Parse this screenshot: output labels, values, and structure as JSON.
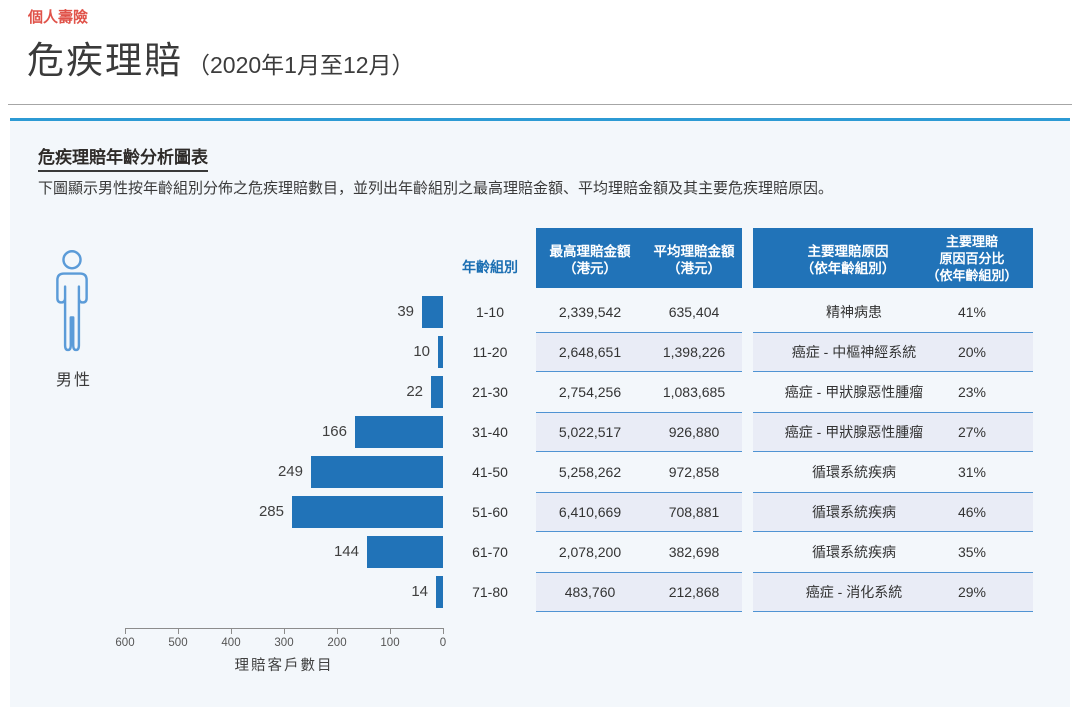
{
  "page": {
    "category": "個人壽險",
    "title": "危疾理賠",
    "title_period": "（2020年1月至12月）"
  },
  "panel": {
    "section_title": "危疾理賠年齡分析圖表",
    "description": "下圖顯示男性按年齡組別分佈之危疾理賠數目，並列出年齡組別之最高理賠金額、平均理賠金額及其主要危疾理賠原因。",
    "gender_label": "男性",
    "gender_icon": "male-person-outline-icon"
  },
  "table": {
    "age_header": "年齡組別",
    "max_header_line1": "最高理賠金額",
    "max_header_line2": "（港元）",
    "avg_header_line1": "平均理賠金額",
    "avg_header_line2": "（港元）",
    "reason_header_line1": "主要理賠原因",
    "reason_header_line2": "（依年齡組別）",
    "pct_header_line1": "主要理賠",
    "pct_header_line2": "原因百分比",
    "pct_header_line3": "（依年齡組別）"
  },
  "chart_data": {
    "type": "bar",
    "orientation": "horizontal-right-to-left",
    "title": "危疾理賠年齡分析圖表",
    "categories": [
      "1-10",
      "11-20",
      "21-30",
      "31-40",
      "41-50",
      "51-60",
      "61-70",
      "71-80"
    ],
    "values": [
      39,
      10,
      22,
      166,
      249,
      285,
      144,
      14
    ],
    "xlabel": "理賠客戶數目",
    "xlim": [
      0,
      600
    ],
    "axis_ticks": [
      600,
      500,
      400,
      300,
      200,
      100,
      0
    ],
    "bar_color": "#2173b8",
    "rows": [
      {
        "age": "1-10",
        "count": 39,
        "max": "2,339,542",
        "avg": "635,404",
        "reason": "精神病患",
        "pct": "41%"
      },
      {
        "age": "11-20",
        "count": 10,
        "max": "2,648,651",
        "avg": "1,398,226",
        "reason": "癌症 - 中樞神經系統",
        "pct": "20%"
      },
      {
        "age": "21-30",
        "count": 22,
        "max": "2,754,256",
        "avg": "1,083,685",
        "reason": "癌症 - 甲狀腺惡性腫瘤",
        "pct": "23%"
      },
      {
        "age": "31-40",
        "count": 166,
        "max": "5,022,517",
        "avg": "926,880",
        "reason": "癌症 - 甲狀腺惡性腫瘤",
        "pct": "27%"
      },
      {
        "age": "41-50",
        "count": 249,
        "max": "5,258,262",
        "avg": "972,858",
        "reason": "循環系統疾病",
        "pct": "31%"
      },
      {
        "age": "51-60",
        "count": 285,
        "max": "6,410,669",
        "avg": "708,881",
        "reason": "循環系統疾病",
        "pct": "46%"
      },
      {
        "age": "61-70",
        "count": 144,
        "max": "2,078,200",
        "avg": "382,698",
        "reason": "循環系統疾病",
        "pct": "35%"
      },
      {
        "age": "71-80",
        "count": 14,
        "max": "483,760",
        "avg": "212,868",
        "reason": "癌症 - 消化系統",
        "pct": "29%"
      }
    ]
  },
  "colors": {
    "accent_red": "#e0534a",
    "accent_blue": "#2173b8",
    "panel_top_border": "#2c9ad4",
    "panel_bg": "#f3f7fb",
    "stripe_bg": "#e9ecf6",
    "stripe_border": "#4f93d3",
    "icon_stroke": "#5b9bd8"
  }
}
